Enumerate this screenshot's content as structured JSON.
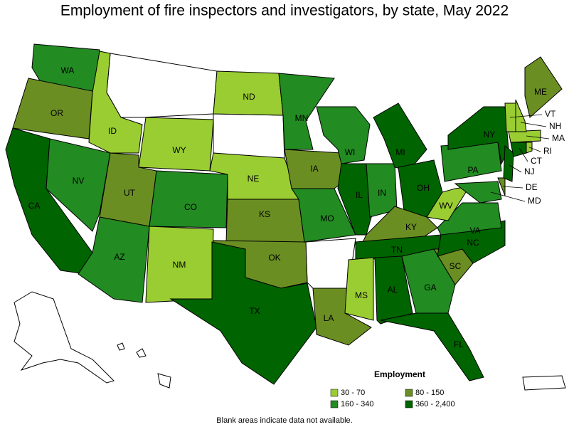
{
  "title": "Employment of fire inspectors and investigators, by state, May 2022",
  "legend": {
    "title": "Employment",
    "bins": [
      {
        "label": "30 - 70",
        "color": "#9acd32"
      },
      {
        "label": "80 - 150",
        "color": "#6b8e23"
      },
      {
        "label": "160 - 340",
        "color": "#228b22"
      },
      {
        "label": "360 - 2,400",
        "color": "#006400"
      }
    ]
  },
  "states": [
    {
      "label": "WA",
      "range": "160 - 340"
    },
    {
      "label": "OR",
      "range": "80 - 150"
    },
    {
      "label": "CA",
      "range": "360 - 2,400"
    },
    {
      "label": "NV",
      "range": "160 - 340"
    },
    {
      "label": "ID",
      "range": "30 - 70"
    },
    {
      "label": "WY",
      "range": "30 - 70"
    },
    {
      "label": "UT",
      "range": "80 - 150"
    },
    {
      "label": "AZ",
      "range": "160 - 340"
    },
    {
      "label": "CO",
      "range": "160 - 340"
    },
    {
      "label": "NM",
      "range": "30 - 70"
    },
    {
      "label": "ND",
      "range": "30 - 70"
    },
    {
      "label": "NE",
      "range": "30 - 70"
    },
    {
      "label": "KS",
      "range": "80 - 150"
    },
    {
      "label": "OK",
      "range": "80 - 150"
    },
    {
      "label": "TX",
      "range": "360 - 2,400"
    },
    {
      "label": "MN",
      "range": "160 - 340"
    },
    {
      "label": "IA",
      "range": "80 - 150"
    },
    {
      "label": "MO",
      "range": "160 - 340"
    },
    {
      "label": "LA",
      "range": "80 - 150"
    },
    {
      "label": "WI",
      "range": "160 - 340"
    },
    {
      "label": "IL",
      "range": "360 - 2,400"
    },
    {
      "label": "IN",
      "range": "160 - 340"
    },
    {
      "label": "MI",
      "range": "360 - 2,400"
    },
    {
      "label": "OH",
      "range": "360 - 2,400"
    },
    {
      "label": "KY",
      "range": "80 - 150"
    },
    {
      "label": "TN",
      "range": "360 - 2,400"
    },
    {
      "label": "MS",
      "range": "30 - 70"
    },
    {
      "label": "AL",
      "range": "360 - 2,400"
    },
    {
      "label": "GA",
      "range": "160 - 340"
    },
    {
      "label": "FL",
      "range": "360 - 2,400"
    },
    {
      "label": "SC",
      "range": "80 - 150"
    },
    {
      "label": "NC",
      "range": "360 - 2,400"
    },
    {
      "label": "VA",
      "range": "160 - 340"
    },
    {
      "label": "WV",
      "range": "30 - 70"
    },
    {
      "label": "PA",
      "range": "160 - 340"
    },
    {
      "label": "NY",
      "range": "360 - 2,400"
    },
    {
      "label": "MD",
      "range": "160 - 340"
    },
    {
      "label": "DE",
      "range": "80 - 150"
    },
    {
      "label": "NJ",
      "range": "360 - 2,400"
    },
    {
      "label": "CT",
      "range": "360 - 2,400"
    },
    {
      "label": "RI",
      "range": "30 - 70"
    },
    {
      "label": "MA",
      "range": "30 - 70"
    },
    {
      "label": "VT",
      "range": "30 - 70"
    },
    {
      "label": "NH",
      "range": "30 - 70"
    },
    {
      "label": "ME",
      "range": "80 - 150"
    }
  ],
  "note": "Blank areas indicate data not available."
}
